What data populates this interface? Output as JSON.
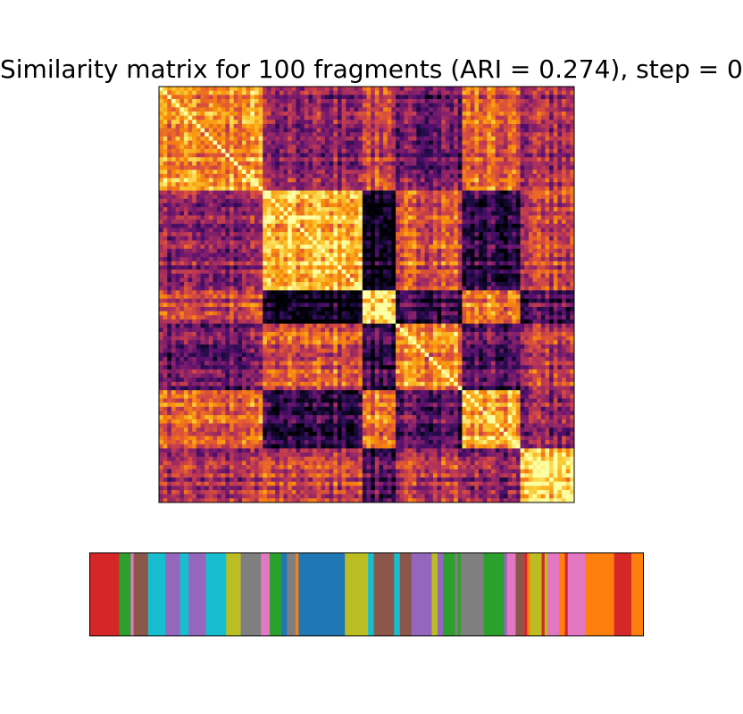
{
  "chart_data": [
    {
      "type": "heatmap",
      "title": "Similarity matrix for 100 fragments (ARI = 0.274), step = 0",
      "n": 100,
      "colormap": "inferno",
      "value_range": [
        0,
        1
      ],
      "blocks": [
        {
          "start": 0,
          "end": 25,
          "within": 0.72
        },
        {
          "start": 25,
          "end": 49,
          "within": 0.86
        },
        {
          "start": 49,
          "end": 57,
          "within": 0.95
        },
        {
          "start": 57,
          "end": 73,
          "within": 0.74
        },
        {
          "start": 73,
          "end": 87,
          "within": 0.82
        },
        {
          "start": 87,
          "end": 100,
          "within": 0.93
        }
      ],
      "between": [
        [
          null,
          0.38,
          0.55,
          0.3,
          0.62,
          0.45
        ],
        [
          0.38,
          null,
          0.05,
          0.6,
          0.15,
          0.55
        ],
        [
          0.55,
          0.05,
          null,
          0.2,
          0.7,
          0.25
        ],
        [
          0.3,
          0.6,
          0.2,
          null,
          0.25,
          0.5
        ],
        [
          0.62,
          0.15,
          0.7,
          0.25,
          null,
          0.4
        ],
        [
          0.45,
          0.55,
          0.25,
          0.5,
          0.4,
          null
        ]
      ],
      "axes_visible": false
    },
    {
      "type": "heatmap",
      "description_of_role": "cluster label strip",
      "colors": [
        "#d62728",
        "#2ca02c",
        "#e377c2",
        "#8c564b",
        "#17becf",
        "#9467bd",
        "#7f7f7f",
        "#bcbd22",
        "#1f77b4",
        "#ff7f0e"
      ],
      "segments": [
        {
          "color": "#d62728",
          "width": 5
        },
        {
          "color": "#2ca02c",
          "width": 2
        },
        {
          "color": "#e377c2",
          "width": 0.5
        },
        {
          "color": "#8c564b",
          "width": 2.5
        },
        {
          "color": "#17becf",
          "width": 3
        },
        {
          "color": "#9467bd",
          "width": 2.5
        },
        {
          "color": "#17becf",
          "width": 1.5
        },
        {
          "color": "#9467bd",
          "width": 3
        },
        {
          "color": "#17becf",
          "width": 3.5
        },
        {
          "color": "#bcbd22",
          "width": 2.5
        },
        {
          "color": "#7f7f7f",
          "width": 3.5
        },
        {
          "color": "#e377c2",
          "width": 1.5
        },
        {
          "color": "#2ca02c",
          "width": 2
        },
        {
          "color": "#1f77b4",
          "width": 1
        },
        {
          "color": "#7f7f7f",
          "width": 1.5
        },
        {
          "color": "#ff7f0e",
          "width": 0.5
        },
        {
          "color": "#1f77b4",
          "width": 8
        },
        {
          "color": "#bcbd22",
          "width": 4
        },
        {
          "color": "#17becf",
          "width": 1
        },
        {
          "color": "#8c564b",
          "width": 3.5
        },
        {
          "color": "#17becf",
          "width": 1
        },
        {
          "color": "#8c564b",
          "width": 2
        },
        {
          "color": "#9467bd",
          "width": 3.5
        },
        {
          "color": "#bcbd22",
          "width": 1
        },
        {
          "color": "#9467bd",
          "width": 1
        },
        {
          "color": "#2ca02c",
          "width": 2
        },
        {
          "color": "#7f7f7f",
          "width": 0.5
        },
        {
          "color": "#2ca02c",
          "width": 0.5
        },
        {
          "color": "#7f7f7f",
          "width": 4
        },
        {
          "color": "#2ca02c",
          "width": 3.5
        },
        {
          "color": "#9467bd",
          "width": 0.5
        },
        {
          "color": "#e377c2",
          "width": 1.5
        },
        {
          "color": "#8c564b",
          "width": 1.5
        },
        {
          "color": "#d62728",
          "width": 0.5
        },
        {
          "color": "#ff7f0e",
          "width": 0.5
        },
        {
          "color": "#bcbd22",
          "width": 2
        },
        {
          "color": "#d62728",
          "width": 0.5
        },
        {
          "color": "#bcbd22",
          "width": 0.5
        },
        {
          "color": "#e377c2",
          "width": 2
        },
        {
          "color": "#ff7f0e",
          "width": 1
        },
        {
          "color": "#d62728",
          "width": 0.5
        },
        {
          "color": "#e377c2",
          "width": 3
        },
        {
          "color": "#ff7f0e",
          "width": 5
        },
        {
          "color": "#d62728",
          "width": 3
        },
        {
          "color": "#ff7f0e",
          "width": 2
        }
      ],
      "axes_visible": false
    }
  ]
}
